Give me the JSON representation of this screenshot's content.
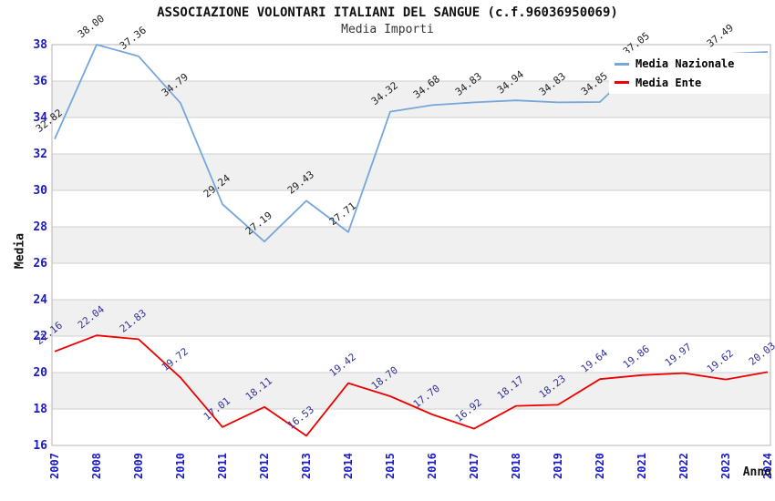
{
  "title": "ASSOCIAZIONE VOLONTARI ITALIANI DEL SANGUE (c.f.96036950069)",
  "subtitle": "Media Importi",
  "colors": {
    "tick_labels": "#1a1acc",
    "band_gray": "#f0f0f0",
    "band_white": "#ffffff",
    "gridline": "#cfcfcf",
    "plot_border": "#b3b3b3",
    "legend_bg": "#ffffff"
  },
  "chart_data": {
    "type": "line",
    "title": "ASSOCIAZIONE VOLONTARI ITALIANI DEL SANGUE (c.f.96036950069)",
    "subtitle": "Media Importi",
    "xlabel": "Anno",
    "ylabel": "Media",
    "ylim": [
      16,
      38
    ],
    "y_ticks": [
      38,
      36,
      34,
      32,
      30,
      28,
      26,
      24,
      22,
      20,
      18,
      16
    ],
    "grid": "horizontal gridlines with alternating gray/white bands every 2 units",
    "legend_position": "top-right",
    "categories": [
      "2007",
      "2008",
      "2009",
      "2010",
      "2011",
      "2012",
      "2013",
      "2014",
      "2015",
      "2016",
      "2017",
      "2018",
      "2019",
      "2020",
      "2021",
      "2022",
      "2023",
      "2024"
    ],
    "series": [
      {
        "name": "Media Nazionale",
        "color": "#74a7dc",
        "label_color": "#222222",
        "values": [
          32.82,
          38.0,
          37.36,
          34.79,
          29.24,
          27.19,
          29.43,
          27.71,
          34.32,
          34.68,
          34.83,
          34.94,
          34.83,
          34.85,
          37.05,
          37.2,
          37.49,
          37.6
        ],
        "point_labels": [
          "32.82",
          "38.00",
          "37.36",
          "34.79",
          "29.24",
          "27.19",
          "29.43",
          "27.71",
          "34.32",
          "34.68",
          "34.83",
          "34.94",
          "34.83",
          "34.85",
          "37.05",
          null,
          "37.49",
          null
        ]
      },
      {
        "name": "Media Ente",
        "color": "#ee0000",
        "label_color": "#333399",
        "values": [
          21.16,
          22.04,
          21.83,
          19.72,
          17.01,
          18.11,
          16.53,
          19.42,
          18.7,
          17.7,
          16.92,
          18.17,
          18.23,
          19.64,
          19.86,
          19.97,
          19.62,
          20.03
        ],
        "point_labels": [
          "21.16",
          "22.04",
          "21.83",
          "19.72",
          "17.01",
          "18.11",
          "16.53",
          "19.42",
          "18.70",
          "17.70",
          "16.92",
          "18.17",
          "18.23",
          "19.64",
          "19.86",
          "19.97",
          "19.62",
          "20.03"
        ]
      }
    ]
  }
}
